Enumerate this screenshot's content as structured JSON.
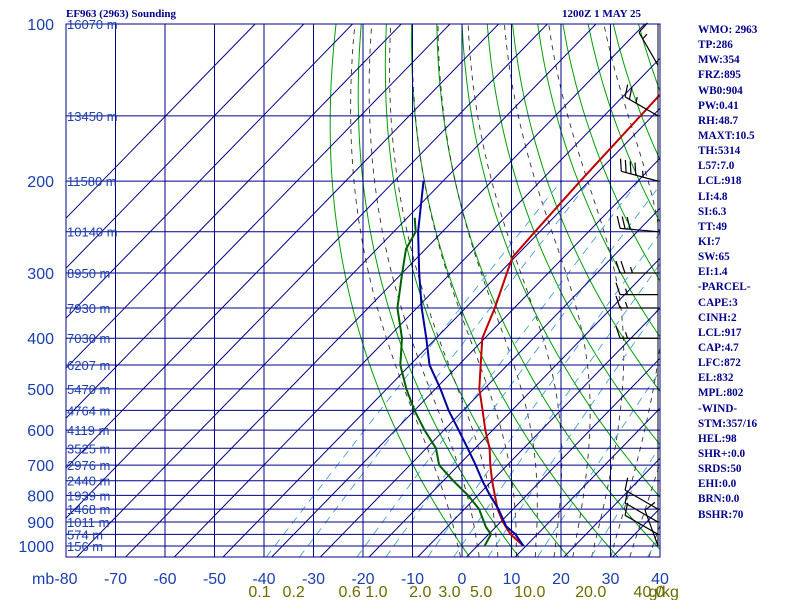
{
  "header": {
    "left_title": "EF963 (2963) Sounding",
    "right_title": "1200Z  1 MAY 25"
  },
  "indices": [
    "WMO: 2963",
    "TP:286",
    "MW:354",
    "FRZ:895",
    "WB0:904",
    "PW:0.41",
    "RH:48.7",
    "MAXT:10.5",
    "TH:5314",
    "L57:7.0",
    "LCL:918",
    "LI:4.8",
    "SI:6.3",
    "TT:49",
    "KI:7",
    "SW:65",
    "EI:1.4",
    "-PARCEL-",
    "CAPE:3",
    "CINH:2",
    "LCL:917",
    "CAP:4.7",
    "LFC:872",
    "EL:832",
    "MPL:802",
    "-WIND-",
    "STM:357/16",
    "HEL:98",
    "SHR+:0.0",
    "SRDS:50",
    "EHI:0.0",
    "BRN:0.0",
    "BSHR:70"
  ],
  "colors": {
    "grid": "#00008b",
    "dry_adiabat": "#00a000",
    "moist_adiabat": "#333333",
    "mixing_ratio": "#4aa0d0",
    "temperature": "#c00000",
    "dewpoint": "#006000",
    "parcel": "#0000a0",
    "wind_barb": "#000000",
    "mixing_label": "#6b6b00"
  },
  "chart_data": {
    "type": "skew-t log-p sounding",
    "xlabel": "",
    "ylabel": "mb",
    "pressure_levels": [
      100,
      200,
      300,
      400,
      500,
      600,
      700,
      800,
      900,
      1000
    ],
    "temperature_ticks": [
      -80,
      -70,
      -60,
      -50,
      -40,
      -30,
      -20,
      -10,
      0,
      10,
      20,
      30,
      40
    ],
    "xlim": [
      -80,
      40
    ],
    "ylim": [
      100,
      1050
    ],
    "height_labels": [
      {
        "p": 100,
        "text": "16070 m"
      },
      {
        "p": 150,
        "text": "13450 m"
      },
      {
        "p": 200,
        "text": "11580 m"
      },
      {
        "p": 250,
        "text": "10140 m"
      },
      {
        "p": 300,
        "text": "8950 m"
      },
      {
        "p": 350,
        "text": "7930 m"
      },
      {
        "p": 400,
        "text": "7030 m"
      },
      {
        "p": 450,
        "text": "6207 m"
      },
      {
        "p": 500,
        "text": "5470 m"
      },
      {
        "p": 550,
        "text": "4764 m"
      },
      {
        "p": 600,
        "text": "4119 m"
      },
      {
        "p": 650,
        "text": "3525 m"
      },
      {
        "p": 700,
        "text": "2976 m"
      },
      {
        "p": 750,
        "text": "2440 m"
      },
      {
        "p": 800,
        "text": "1939 m"
      },
      {
        "p": 850,
        "text": "1468 m"
      },
      {
        "p": 900,
        "text": "1011 m"
      },
      {
        "p": 950,
        "text": "574 m"
      },
      {
        "p": 1000,
        "text": "156 m"
      }
    ],
    "mixing_ratio_labels": [
      {
        "text": "0.1",
        "x_at_bottom": -42.5
      },
      {
        "text": "0.2",
        "x_at_bottom": -35.5
      },
      {
        "text": "0.6",
        "x_at_bottom": -24
      },
      {
        "text": "1.0",
        "x_at_bottom": -18.5
      },
      {
        "text": "2.0",
        "x_at_bottom": -9.5
      },
      {
        "text": "3.0",
        "x_at_bottom": -3.5
      },
      {
        "text": "5.0",
        "x_at_bottom": 3
      },
      {
        "text": "10.0",
        "x_at_bottom": 13
      },
      {
        "text": "20.0",
        "x_at_bottom": 25.5
      },
      {
        "text": "40.0",
        "x_at_bottom": 37.5
      },
      {
        "text": "g/kg",
        "x_at_bottom": 40.5
      }
    ],
    "dry_adiabats_theta": [
      270,
      280,
      290,
      300,
      310,
      320,
      330,
      340,
      350,
      360,
      370,
      380,
      390,
      400,
      410,
      420,
      430,
      440,
      450,
      460,
      470,
      480,
      490,
      500,
      510,
      520
    ],
    "moist_adiabats_thetaw": [
      -4,
      0,
      4,
      8,
      12,
      16,
      20,
      24,
      28,
      32,
      36
    ],
    "mixing_ratio_lines": [
      0.1,
      0.2,
      0.6,
      1,
      2,
      3,
      5,
      10,
      20,
      40
    ],
    "series": [
      {
        "key": "temperature",
        "points": [
          {
            "p": 1000,
            "t": 9.5
          },
          {
            "p": 950,
            "t": 4.5
          },
          {
            "p": 900,
            "t": 0.5
          },
          {
            "p": 850,
            "t": -3.2
          },
          {
            "p": 800,
            "t": -6.5
          },
          {
            "p": 750,
            "t": -10.0
          },
          {
            "p": 700,
            "t": -13.5
          },
          {
            "p": 650,
            "t": -17.0
          },
          {
            "p": 600,
            "t": -21.5
          },
          {
            "p": 550,
            "t": -26.0
          },
          {
            "p": 500,
            "t": -31.0
          },
          {
            "p": 450,
            "t": -35.5
          },
          {
            "p": 400,
            "t": -40.5
          },
          {
            "p": 350,
            "t": -44.0
          },
          {
            "p": 300,
            "t": -48.5
          },
          {
            "p": 280,
            "t": -50.5
          },
          {
            "p": 250,
            "t": -51.0
          },
          {
            "p": 200,
            "t": -51.8
          },
          {
            "p": 150,
            "t": -52.5
          },
          {
            "p": 100,
            "t": -53.5
          }
        ]
      },
      {
        "key": "dewpoint",
        "points": [
          {
            "p": 1000,
            "t": 1.5
          },
          {
            "p": 950,
            "t": 0.5
          },
          {
            "p": 920,
            "t": -2.0
          },
          {
            "p": 850,
            "t": -7.0
          },
          {
            "p": 800,
            "t": -12.0
          },
          {
            "p": 750,
            "t": -18.0
          },
          {
            "p": 700,
            "t": -24.0
          },
          {
            "p": 650,
            "t": -28.0
          },
          {
            "p": 600,
            "t": -34.0
          },
          {
            "p": 550,
            "t": -40.0
          },
          {
            "p": 500,
            "t": -46.0
          },
          {
            "p": 450,
            "t": -52.0
          },
          {
            "p": 400,
            "t": -57.0
          },
          {
            "p": 350,
            "t": -64.0
          },
          {
            "p": 300,
            "t": -70.0
          },
          {
            "p": 270,
            "t": -74.0
          },
          {
            "p": 250,
            "t": -75.5
          },
          {
            "p": 235,
            "t": -78.5
          }
        ]
      },
      {
        "key": "parcel",
        "points": [
          {
            "p": 1000,
            "t": 9.5
          },
          {
            "p": 950,
            "t": 5.5
          },
          {
            "p": 917,
            "t": 2.0
          },
          {
            "p": 850,
            "t": -3.0
          },
          {
            "p": 800,
            "t": -7.5
          },
          {
            "p": 750,
            "t": -12.0
          },
          {
            "p": 700,
            "t": -16.5
          },
          {
            "p": 650,
            "t": -21.5
          },
          {
            "p": 600,
            "t": -27.0
          },
          {
            "p": 550,
            "t": -33.0
          },
          {
            "p": 500,
            "t": -39.0
          },
          {
            "p": 450,
            "t": -46.0
          },
          {
            "p": 400,
            "t": -52.0
          },
          {
            "p": 350,
            "t": -59.0
          },
          {
            "p": 300,
            "t": -66.5
          },
          {
            "p": 250,
            "t": -75.0
          },
          {
            "p": 200,
            "t": -84.0
          }
        ]
      }
    ],
    "wind_barbs": [
      {
        "p": 1000,
        "dir": 340,
        "spd": 10
      },
      {
        "p": 950,
        "dir": 300,
        "spd": 10
      },
      {
        "p": 900,
        "dir": 300,
        "spd": 10
      },
      {
        "p": 850,
        "dir": 300,
        "spd": 10
      },
      {
        "p": 400,
        "dir": 270,
        "spd": 15
      },
      {
        "p": 350,
        "dir": 270,
        "spd": 15
      },
      {
        "p": 330,
        "dir": 270,
        "spd": 15
      },
      {
        "p": 300,
        "dir": 270,
        "spd": 25
      },
      {
        "p": 250,
        "dir": 275,
        "spd": 30
      },
      {
        "p": 200,
        "dir": 285,
        "spd": 45
      },
      {
        "p": 150,
        "dir": 300,
        "spd": 25
      },
      {
        "p": 120,
        "dir": 330,
        "spd": 15
      }
    ]
  }
}
